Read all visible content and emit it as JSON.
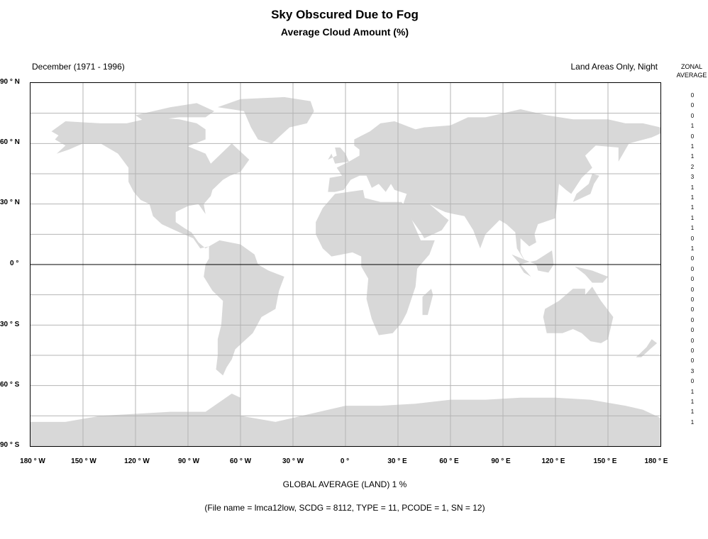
{
  "title": "Sky Obscured Due to Fog",
  "subtitle": "Average Cloud Amount (%)",
  "period": "December (1971 - 1996)",
  "scope": "Land Areas Only, Night",
  "zonal_header": "ZONAL AVERAGE",
  "lat_labels": [
    "90 ° N",
    "60 ° N",
    "30 ° N",
    "0 °",
    "30 ° S",
    "60 ° S",
    "90 ° S"
  ],
  "lon_labels": [
    "180 ° W",
    "150 ° W",
    "120 ° W",
    "90 ° W",
    "60 ° W",
    "30 ° W",
    "0 °",
    "30 ° E",
    "60 ° E",
    "90 ° E",
    "120 ° E",
    "150 ° E",
    "180 ° E"
  ],
  "zonal_averages": [
    "0",
    "0",
    "0",
    "1",
    "0",
    "1",
    "1",
    "2",
    "3",
    "1",
    "1",
    "1",
    "1",
    "1",
    "0",
    "1",
    "0",
    "0",
    "0",
    "0",
    "0",
    "0",
    "0",
    "0",
    "0",
    "0",
    "0",
    "3",
    "0",
    "1",
    "1",
    "1",
    "1"
  ],
  "global_average": "GLOBAL AVERAGE (LAND)   1 %",
  "file_info": "(File name = lmca12low, SCDG = 8112, TYPE = 11, PCODE = 1, SN = 12)",
  "map": {
    "land_color": "#d8d8d8",
    "grid_color": "#b4b4b4",
    "equator_color": "#000000"
  }
}
